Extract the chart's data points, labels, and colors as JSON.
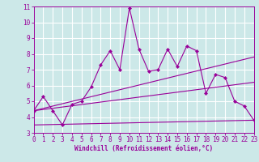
{
  "xlabel": "Windchill (Refroidissement éolien,°C)",
  "xlim": [
    0,
    23
  ],
  "ylim": [
    3,
    11
  ],
  "xticks": [
    0,
    1,
    2,
    3,
    4,
    5,
    6,
    7,
    8,
    9,
    10,
    11,
    12,
    13,
    14,
    15,
    16,
    17,
    18,
    19,
    20,
    21,
    22,
    23
  ],
  "yticks": [
    3,
    4,
    5,
    6,
    7,
    8,
    9,
    10,
    11
  ],
  "bg_color": "#cce8e8",
  "line_color": "#990099",
  "grid_color": "#ffffff",
  "series1_x": [
    0,
    1,
    2,
    3,
    4,
    5,
    6,
    7,
    8,
    9,
    10,
    11,
    12,
    13,
    14,
    15,
    16,
    17,
    18,
    19,
    20,
    21,
    22,
    23
  ],
  "series1_y": [
    4.4,
    5.3,
    4.4,
    3.5,
    4.8,
    5.0,
    5.9,
    7.3,
    8.2,
    7.0,
    10.9,
    8.3,
    6.9,
    7.0,
    8.3,
    7.2,
    8.5,
    8.2,
    5.5,
    6.7,
    6.5,
    5.0,
    4.7,
    3.8
  ],
  "series2_x": [
    0,
    23
  ],
  "series2_y": [
    4.4,
    7.8
  ],
  "series3_x": [
    0,
    23
  ],
  "series3_y": [
    4.4,
    6.2
  ],
  "series4_x": [
    0,
    23
  ],
  "series4_y": [
    3.5,
    3.8
  ],
  "tick_fontsize": 5.5,
  "xlabel_fontsize": 5.5
}
